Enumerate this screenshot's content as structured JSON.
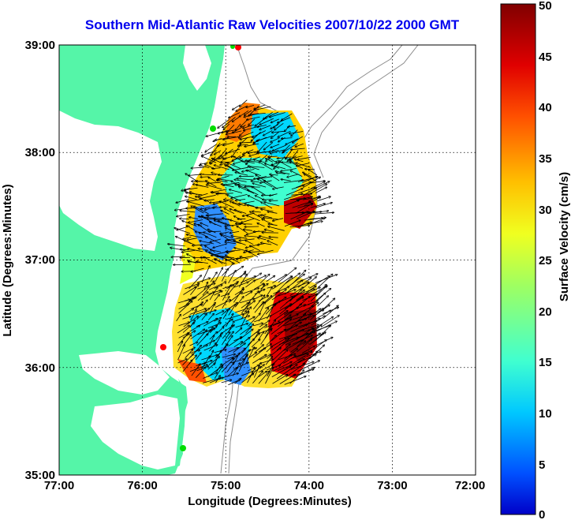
{
  "title": "Southern Mid-Atlantic Raw Velocities 2007/10/22 2000 GMT",
  "x_axis": {
    "label": "Longitude (Degrees:Minutes)",
    "ticks": [
      "77:00",
      "76:00",
      "75:00",
      "74:00",
      "73:00",
      "72:00"
    ]
  },
  "y_axis": {
    "label": "Latitude (Degrees:Minutes)",
    "ticks": [
      "39:00",
      "38:00",
      "37:00",
      "36:00",
      "35:00"
    ]
  },
  "colorbar": {
    "label": "Surface Velocity (cm/s)",
    "ticks": [
      "50",
      "45",
      "40",
      "35",
      "30",
      "25",
      "20",
      "15",
      "10",
      "5",
      "0"
    ],
    "range": [
      0,
      50
    ],
    "colormap": "jet"
  },
  "colors": {
    "land": "#55f5a8",
    "water": "#ffffff",
    "bathymetry": "#8c8c8c",
    "title": "#0000ee",
    "station_markers": [
      "#00dd00",
      "#ff0000"
    ]
  },
  "map_extent": {
    "lon": [
      -77,
      -72
    ],
    "lat": [
      35,
      39
    ]
  }
}
